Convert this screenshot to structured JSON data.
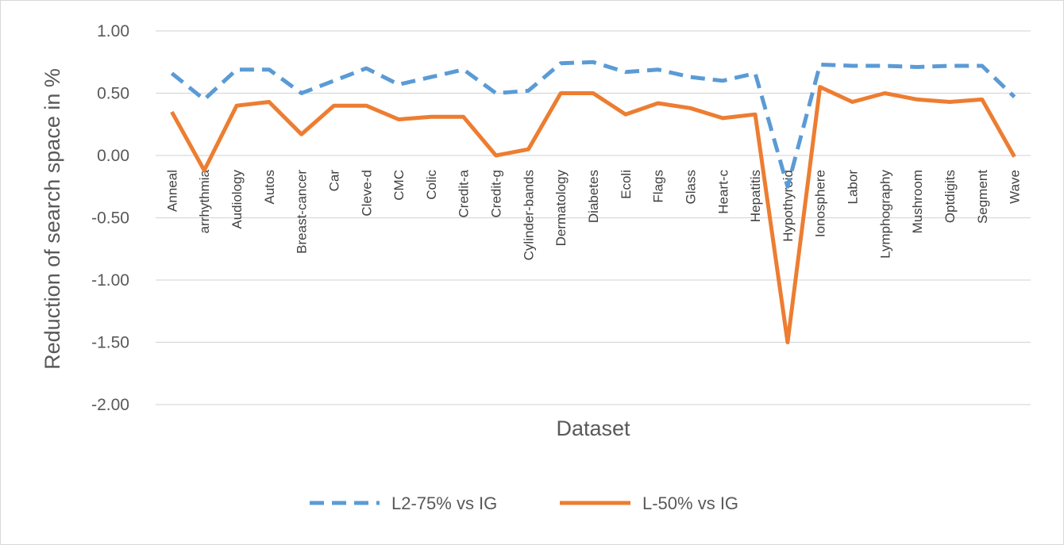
{
  "chart_data": {
    "type": "line",
    "title": "",
    "xlabel": "Dataset",
    "ylabel": "Reduction of search space  in %",
    "ylim": [
      -2.0,
      1.0
    ],
    "y_ticks": [
      "1.00",
      "0.50",
      "0.00",
      "-0.50",
      "-1.00",
      "-1.50",
      "-2.00"
    ],
    "grid": "horizontal",
    "legend": "bottom",
    "categories": [
      "Anneal",
      "arrhythmia",
      "Audiology",
      "Autos",
      "Breast-cancer",
      "Car",
      "Cleve-d",
      "CMC",
      "Colic",
      "Credit-a",
      "Credit-g",
      "Cylinder-bands",
      "Dermatology",
      "Diabetes",
      "Ecoli",
      "Flags",
      "Glass",
      "Heart-c",
      "Hepatitis",
      "Hypothyroid",
      "Ionosphere",
      "Labor",
      "Lymphography",
      "Mushroom",
      "Optdigits",
      "Segment",
      "Wave"
    ],
    "series": [
      {
        "name": "L2-75% vs IG",
        "color": "#5b9bd5",
        "style": "dashed",
        "values": [
          0.66,
          0.45,
          0.69,
          0.69,
          0.5,
          0.6,
          0.7,
          0.57,
          0.63,
          0.69,
          0.5,
          0.52,
          0.74,
          0.75,
          0.67,
          0.69,
          0.63,
          0.6,
          0.66,
          -0.25,
          0.73,
          0.72,
          0.72,
          0.71,
          0.72,
          0.72,
          0.47
        ]
      },
      {
        "name": "L-50% vs IG",
        "color": "#ed7d31",
        "style": "solid",
        "values": [
          0.35,
          -0.12,
          0.4,
          0.43,
          0.17,
          0.4,
          0.4,
          0.29,
          0.31,
          0.31,
          0.0,
          0.05,
          0.5,
          0.5,
          0.33,
          0.42,
          0.38,
          0.3,
          0.33,
          -1.5,
          0.55,
          0.43,
          0.5,
          0.45,
          0.43,
          0.45,
          -0.01
        ]
      }
    ]
  }
}
